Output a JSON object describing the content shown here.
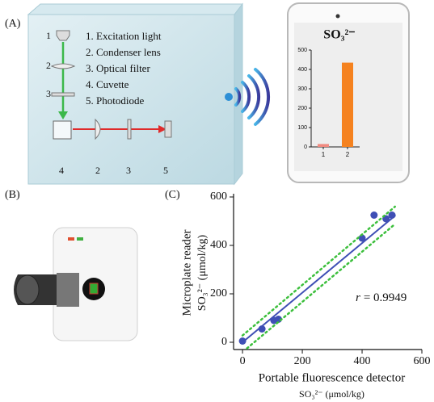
{
  "panel_labels": [
    "(A)",
    "(B)",
    "(C)"
  ],
  "setup": {
    "legend": [
      "1. Excitation light",
      "2. Condenser lens",
      "3. Optical filter",
      "4. Cuvette",
      "5. Photodiode"
    ],
    "component_numbers": [
      "1",
      "2",
      "3",
      "4",
      "2",
      "3",
      "5"
    ]
  },
  "chart_data": [
    {
      "type": "bar",
      "title": "SO₃²⁻",
      "categories": [
        "1",
        "2"
      ],
      "values": [
        15,
        435
      ],
      "colors": [
        "#f08a80",
        "#f5821f"
      ],
      "ylim": [
        0,
        500
      ],
      "yticks": [
        0,
        100,
        200,
        300,
        400,
        500
      ]
    },
    {
      "type": "scatter",
      "xlabel": [
        "Portable fluorescence detector",
        "SO₃²⁻ (μmol/kg)"
      ],
      "ylabel": [
        "Microplate reader",
        "SO₃²⁻ (μmol/kg)"
      ],
      "annotation": {
        "symbol": "r",
        "text": "= 0.9949"
      },
      "series": [
        {
          "type": "scatter",
          "color": "#3f4fb5",
          "x": [
            0,
            65,
            105,
            120,
            400,
            440,
            480,
            500
          ],
          "values": [
            5,
            55,
            90,
            95,
            430,
            525,
            510,
            525
          ]
        },
        {
          "type": "line",
          "color": "#3f4fb5",
          "x": [
            0,
            510
          ],
          "values": [
            0,
            522
          ]
        },
        {
          "type": "line",
          "style": "dotted",
          "color": "#3cbf3c",
          "x": [
            0,
            510
          ],
          "values": [
            28,
            560
          ]
        },
        {
          "type": "line",
          "style": "dotted",
          "color": "#3cbf3c",
          "x": [
            15,
            510
          ],
          "values": [
            -25,
            488
          ]
        }
      ],
      "xlim": [
        -30,
        600
      ],
      "ylim": [
        -30,
        600
      ],
      "xticks": [
        0,
        200,
        400,
        600
      ],
      "yticks": [
        0,
        200,
        400,
        600
      ]
    }
  ]
}
